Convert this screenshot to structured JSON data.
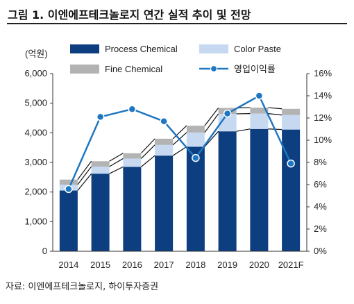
{
  "figure_title": "그림 1. 이엔에프테크놀로지 연간 실적 추이 및 전망",
  "source": "자료: 이엔에프테크놀로지, 하이투자증권",
  "colors": {
    "process_chemical": "#0c3e80",
    "color_paste": "#c6d9f1",
    "fine_chemical": "#b3b3b3",
    "operating_margin": "#1f77c2",
    "axis": "#333333"
  },
  "chart_data": {
    "type": "bar",
    "stacked": true,
    "categories": [
      "2014",
      "2015",
      "2016",
      "2017",
      "2018",
      "2019",
      "2020",
      "2021F"
    ],
    "y_unit_label": "(억원)",
    "ylim": [
      0,
      6000
    ],
    "y_ticks": [
      "0",
      "1,000",
      "2,000",
      "3,000",
      "4,000",
      "5,000",
      "6,000"
    ],
    "y2lim": [
      0,
      16
    ],
    "y2_ticks": [
      "0%",
      "2%",
      "4%",
      "6%",
      "8%",
      "10%",
      "12%",
      "14%",
      "16%"
    ],
    "series": [
      {
        "name": "Process Chemical",
        "type": "bar",
        "axis": "left",
        "values": [
          2050,
          2620,
          2850,
          3230,
          3530,
          4050,
          4130,
          4110
        ]
      },
      {
        "name": "Color Paste",
        "type": "bar",
        "axis": "left",
        "values": [
          200,
          240,
          280,
          360,
          480,
          590,
          520,
          490
        ]
      },
      {
        "name": "Fine Chemical",
        "type": "bar",
        "axis": "left",
        "values": [
          170,
          180,
          180,
          210,
          230,
          200,
          200,
          210
        ]
      },
      {
        "name": "영업이익률",
        "type": "line",
        "axis": "right",
        "unit": "%",
        "values": [
          5.6,
          12.1,
          12.8,
          11.7,
          8.4,
          12.4,
          14.0,
          7.9
        ]
      }
    ],
    "legend_position": "top",
    "grid": false
  }
}
